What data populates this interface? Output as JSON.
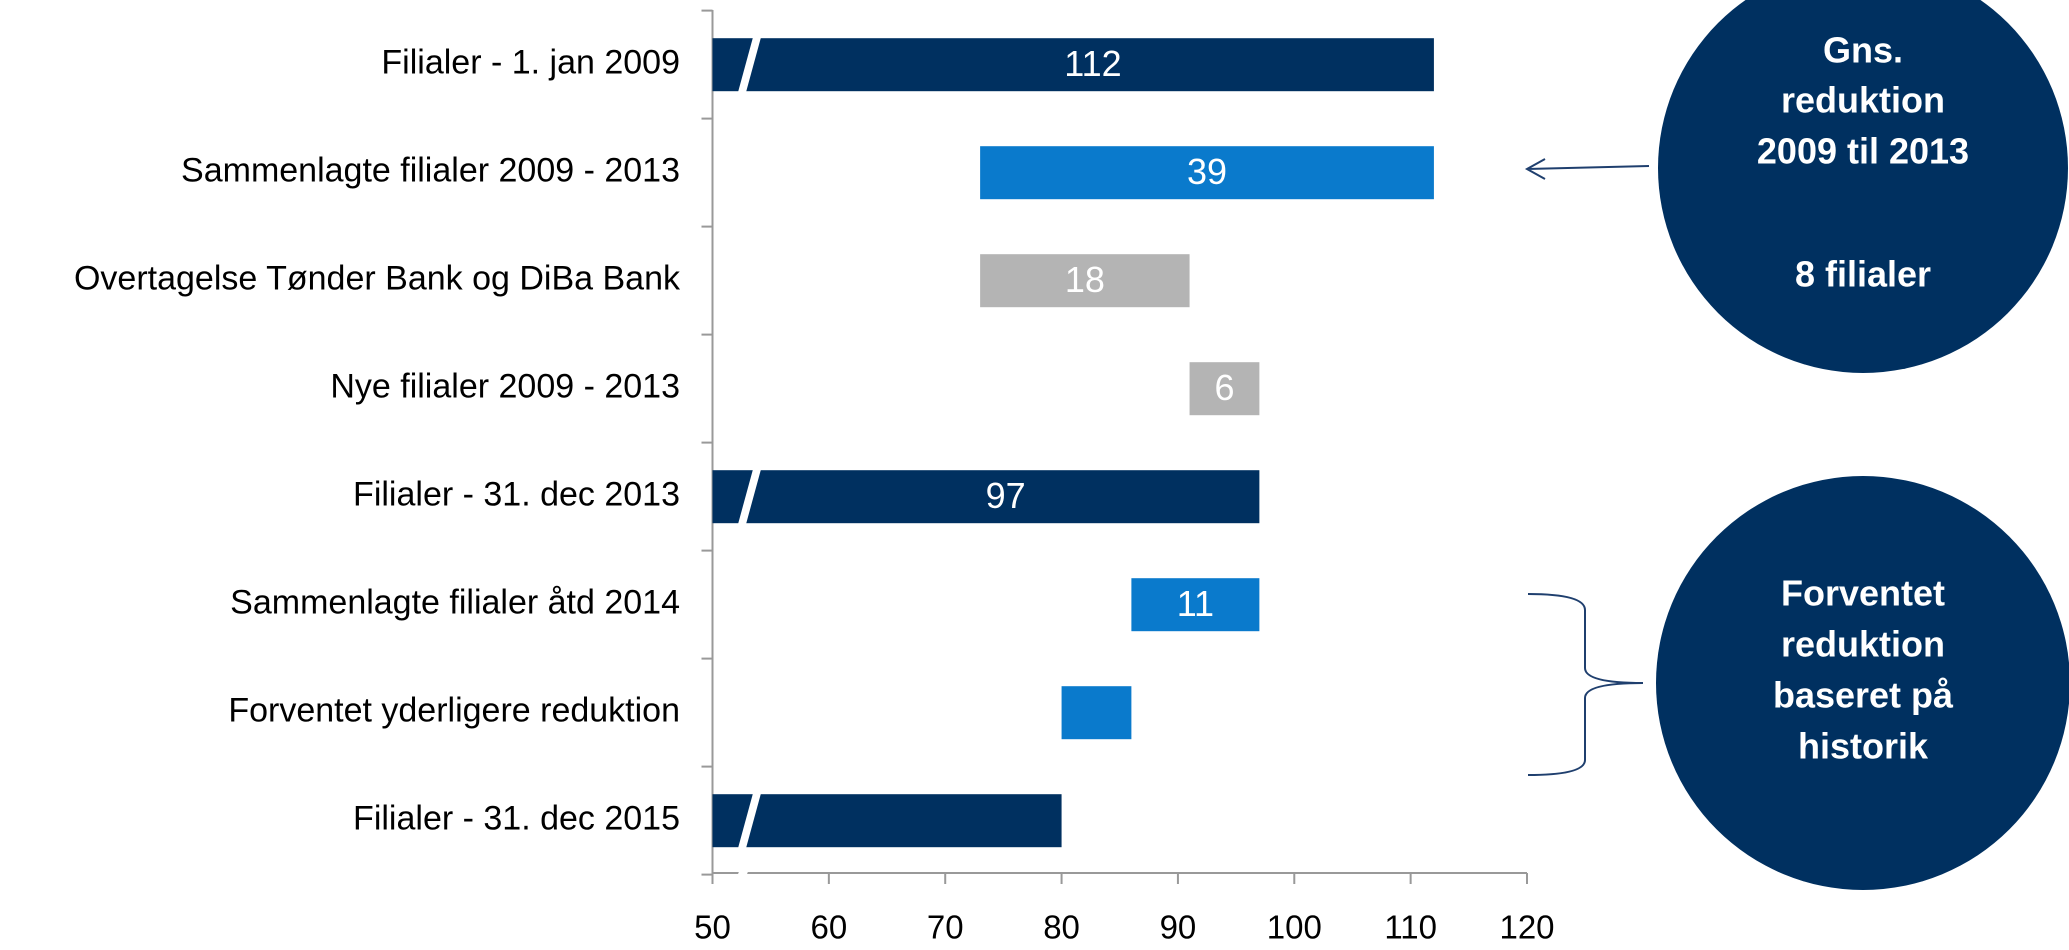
{
  "chart_data": {
    "type": "waterfall",
    "categories": [
      "Filialer - 1. jan 2009",
      "Sammenlagte filialer 2009 - 2013",
      "Overtagelse Tønder Bank og DiBa Bank",
      "Nye filialer 2009 - 2013",
      "Filialer - 31. dec 2013",
      "Sammenlagte filialer åtd 2014",
      "Forventet yderligere reduktion",
      "Filialer - 31. dec 2015"
    ],
    "values": [
      112,
      39,
      18,
      6,
      97,
      11,
      6,
      80
    ],
    "value_labels": [
      "112",
      "39",
      "18",
      "6",
      "97",
      "11",
      null,
      null
    ],
    "kinds": [
      "total",
      "decrease",
      "increase",
      "increase",
      "total",
      "decrease",
      "decrease",
      "total"
    ],
    "colors": [
      "#003060",
      "#0a7acc",
      "#b4b4b4",
      "#b4b4b4",
      "#003060",
      "#0a7acc",
      "#0a7acc",
      "#003060"
    ],
    "xlim": [
      50,
      120
    ],
    "xticks": [
      50,
      60,
      70,
      80,
      90,
      100,
      110,
      120
    ],
    "axis_break": true,
    "annotations": [
      {
        "lines": [
          "Gns.",
          "reduktion",
          "2009 til 2013"
        ],
        "footer": "8 filialer"
      },
      {
        "lines": [
          "Forventet",
          "reduktion",
          "baseret på",
          "historik"
        ]
      }
    ]
  }
}
